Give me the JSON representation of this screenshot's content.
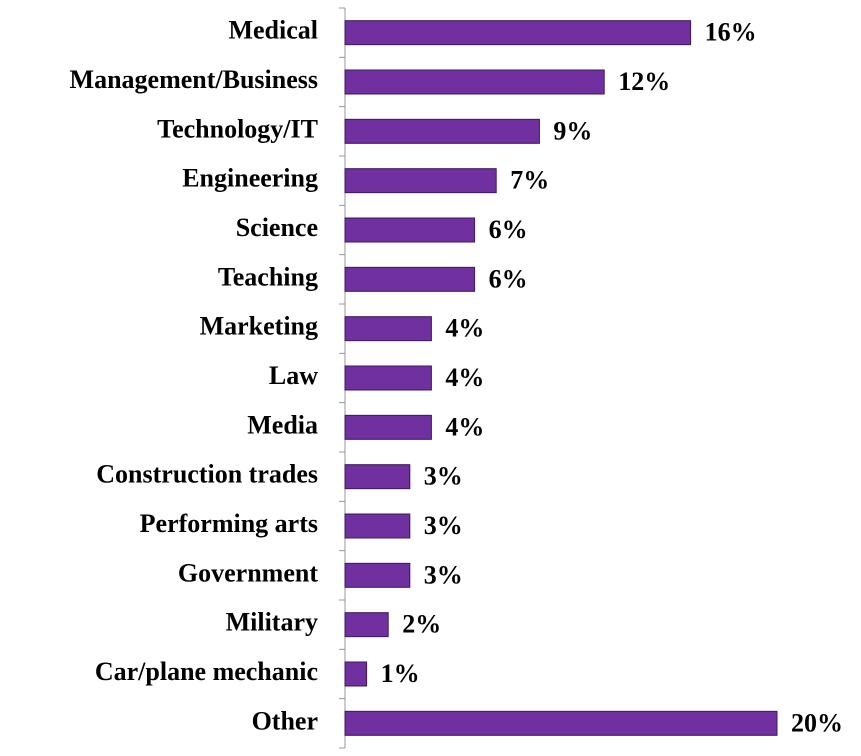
{
  "chart_data": {
    "type": "bar",
    "orientation": "horizontal",
    "categories": [
      "Medical",
      "Management/Business",
      "Technology/IT",
      "Engineering",
      "Science",
      "Teaching",
      "Marketing",
      "Law",
      "Media",
      "Construction trades",
      "Performing arts",
      "Government",
      "Military",
      "Car/plane mechanic",
      "Other"
    ],
    "values": [
      16,
      12,
      9,
      7,
      6,
      6,
      4,
      4,
      4,
      3,
      3,
      3,
      2,
      1,
      20
    ],
    "value_labels": [
      "16%",
      "12%",
      "9%",
      "7%",
      "6%",
      "6%",
      "4%",
      "4%",
      "4%",
      "3%",
      "3%",
      "3%",
      "2%",
      "1%",
      "20%"
    ],
    "color": "#7030a0",
    "xlim": [
      0,
      20
    ]
  }
}
